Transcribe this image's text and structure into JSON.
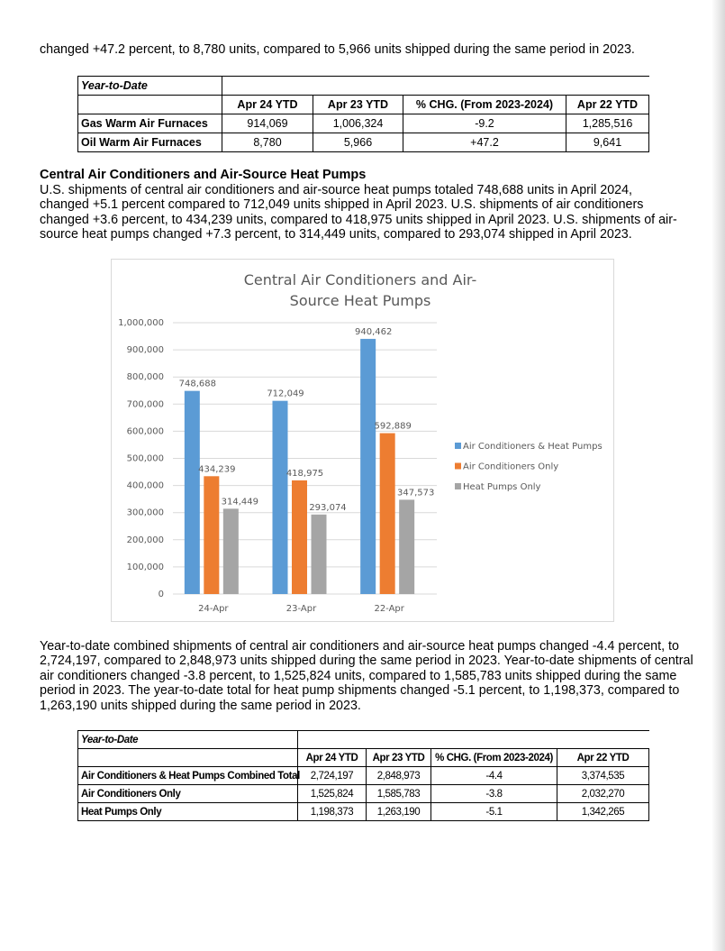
{
  "intro": "changed +47.2 percent, to 8,780 units, compared to 5,966 units shipped during the same period in 2023.",
  "table1": {
    "caption": "Year-to-Date",
    "headers": [
      "Apr 24 YTD",
      "Apr 23 YTD",
      "% CHG. (From 2023-2024)",
      "Apr 22 YTD"
    ],
    "rows": [
      [
        "Gas Warm Air Furnaces",
        "914,069",
        "1,006,324",
        "-9.2",
        "1,285,516"
      ],
      [
        "Oil Warm Air Furnaces",
        "8,780",
        "5,966",
        "+47.2",
        "9,641"
      ]
    ]
  },
  "section": {
    "heading": "Central Air Conditioners and Air-Source Heat Pumps",
    "paragraph": "U.S. shipments of central air conditioners and air-source heat pumps totaled 748,688 units in April 2024, changed +5.1 percent compared to 712,049 units shipped in April 2023. U.S. shipments of air conditioners changed +3.6 percent, to 434,239 units, compared to 418,975 units shipped in April 2023. U.S. shipments of air-source heat pumps changed +7.3 percent, to 314,449 units, compared to 293,074 shipped in April 2023."
  },
  "chart_data": {
    "type": "bar",
    "title": "Central Air Conditioners and Air-Source Heat Pumps",
    "categories": [
      "24-Apr",
      "23-Apr",
      "22-Apr"
    ],
    "series": [
      {
        "name": "Air Conditioners & Heat Pumps",
        "color": "#5b9bd5",
        "values": [
          748688,
          712049,
          940462
        ],
        "value_labels": [
          "748,688",
          "712,049",
          "940,462"
        ]
      },
      {
        "name": "Air Conditioners Only",
        "color": "#ed7d31",
        "values": [
          434239,
          418975,
          592889
        ],
        "value_labels": [
          "434,239",
          "418,975",
          "592,889"
        ]
      },
      {
        "name": "Heat Pumps Only",
        "color": "#a5a5a5",
        "values": [
          314449,
          293074,
          347573
        ],
        "value_labels": [
          "314,449",
          "293,074",
          "347,573"
        ]
      }
    ],
    "ylim": [
      0,
      1000000
    ],
    "yticks": [
      0,
      {
        "value": 100000,
        "label": "100,000"
      },
      {
        "value": 200000,
        "label": "200,000"
      },
      {
        "value": 300000,
        "label": "300,000"
      },
      {
        "value": 400000,
        "label": "400,000"
      },
      {
        "value": 500000,
        "label": "500,000"
      },
      {
        "value": 600000,
        "label": "600,000"
      },
      {
        "value": 700000,
        "label": "700,000"
      },
      {
        "value": 800000,
        "label": "800,000"
      },
      {
        "value": 900000,
        "label": "900,000"
      },
      {
        "value": 1000000,
        "label": "1,000,000"
      }
    ],
    "grid": true,
    "legend": "right"
  },
  "paragraph2": "Year-to-date combined shipments of central air conditioners and air-source heat pumps changed -4.4 percent, to 2,724,197, compared to 2,848,973 units shipped during the same period in 2023. Year-to-date shipments of central air conditioners changed -3.8 percent, to 1,525,824 units, compared to 1,585,783 units shipped during the same period in 2023. The year-to-date total for heat pump shipments changed -5.1 percent, to 1,198,373, compared to 1,263,190 units shipped during the same period in 2023.",
  "table2": {
    "caption": "Year-to-Date",
    "headers": [
      "Apr 24 YTD",
      "Apr 23 YTD",
      "% CHG. (From 2023-2024)",
      "Apr 22 YTD"
    ],
    "rows": [
      [
        "Air Conditioners & Heat Pumps Combined Total",
        "2,724,197",
        "2,848,973",
        "-4.4",
        "3,374,535"
      ],
      [
        "Air Conditioners Only",
        "1,525,824",
        "1,585,783",
        "-3.8",
        "2,032,270"
      ],
      [
        "Heat Pumps Only",
        "1,198,373",
        "1,263,190",
        "-5.1",
        "1,342,265"
      ]
    ]
  }
}
